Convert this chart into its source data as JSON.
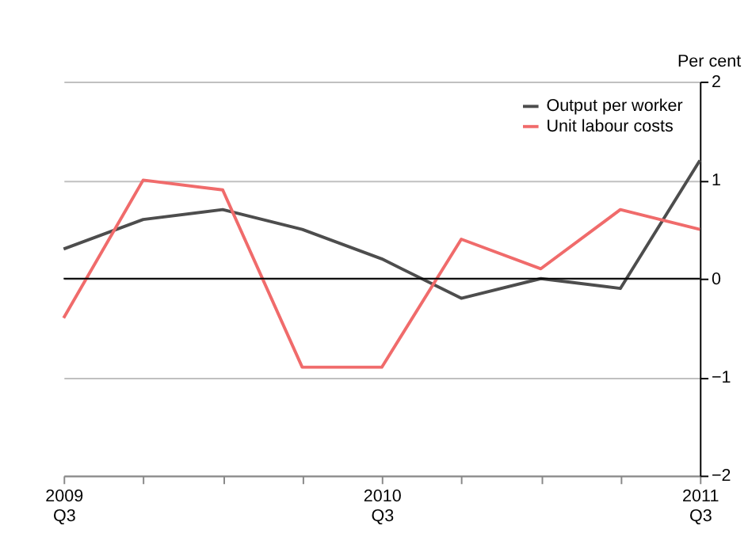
{
  "chart_data": {
    "type": "line",
    "ylabel": "Per cent",
    "categories": [
      "2009 Q3",
      null,
      null,
      null,
      "2010 Q3",
      null,
      null,
      null,
      "2011 Q3"
    ],
    "series": [
      {
        "name": "Output per worker",
        "color": "#4d4d4d",
        "values": [
          0.3,
          0.6,
          0.7,
          0.5,
          0.2,
          -0.2,
          0.0,
          -0.1,
          1.2
        ]
      },
      {
        "name": "Unit labour costs",
        "color": "#f06b6b",
        "values": [
          -0.4,
          1.0,
          0.9,
          -0.9,
          -0.9,
          0.4,
          0.1,
          0.7,
          0.5
        ]
      }
    ],
    "ylim": [
      -2,
      2
    ],
    "yticks": [
      -2,
      -1,
      0,
      1,
      2
    ],
    "grid": "y",
    "legend": "top right",
    "marker": "none",
    "line_style": "solid",
    "ref_lines": [
      {
        "axis": "y",
        "value": 0,
        "color": "#000000"
      }
    ]
  }
}
